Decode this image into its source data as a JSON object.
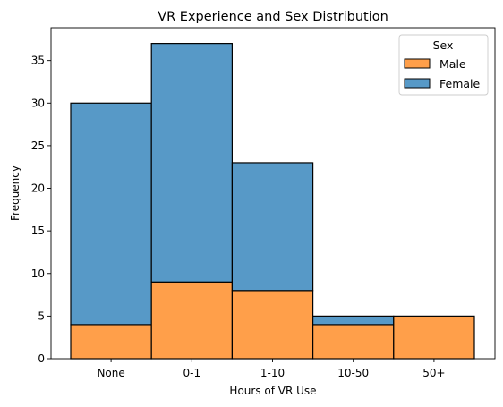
{
  "chart_data": {
    "type": "bar",
    "stacked": true,
    "title": "VR Experience and Sex Distribution",
    "xlabel": "Hours of VR Use",
    "ylabel": "Frequency",
    "categories": [
      "None",
      "0-1",
      "1-10",
      "10-50",
      "50+"
    ],
    "series": [
      {
        "name": "Male",
        "values": [
          4,
          9,
          8,
          4,
          5
        ],
        "color": "#ff9f4a"
      },
      {
        "name": "Female",
        "values": [
          26,
          28,
          15,
          1,
          0
        ],
        "color": "#5799c7"
      }
    ],
    "ylim": [
      0,
      38.85
    ],
    "yticks": [
      0,
      5,
      10,
      15,
      20,
      25,
      30,
      35
    ],
    "grid": false,
    "legend": {
      "title": "Sex",
      "placement": "top-right"
    }
  }
}
